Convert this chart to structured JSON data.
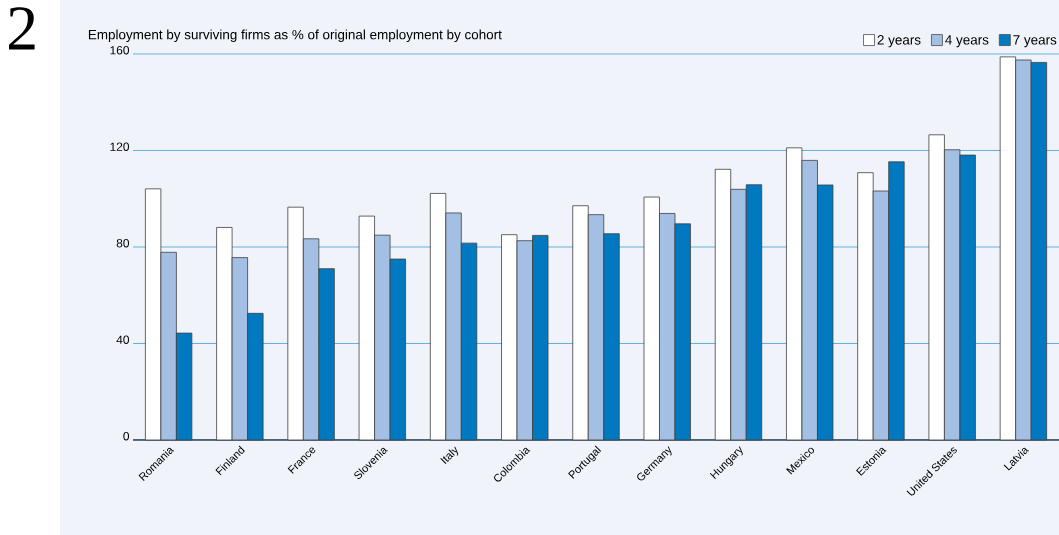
{
  "chart_data": {
    "type": "bar",
    "title": "Employment by surviving firms as % of original employment by cohort",
    "categories": [
      "Romania",
      "Finland",
      "France",
      "Slovenia",
      "Italy",
      "Colombia",
      "Portugal",
      "Germany",
      "Hungary",
      "Mexico",
      "Estonia",
      "United States",
      "Latvia"
    ],
    "series": [
      {
        "name": "2 years",
        "color": "#ffffff",
        "values": [
          104.1,
          88.1,
          96.5,
          92.8,
          102.2,
          85.1,
          97.1,
          100.7,
          112.2,
          121.1,
          110.8,
          126.5,
          158.8
        ]
      },
      {
        "name": "4 years",
        "color": "#a3bfe3",
        "values": [
          77.8,
          75.6,
          83.4,
          84.9,
          94.1,
          82.6,
          93.4,
          93.9,
          103.9,
          115.9,
          103.2,
          120.3,
          157.5
        ]
      },
      {
        "name": "7 years",
        "color": "#0079c1",
        "values": [
          44.3,
          52.5,
          71.0,
          75.0,
          81.6,
          84.8,
          85.5,
          89.6,
          105.8,
          105.7,
          115.3,
          118.1,
          156.5
        ]
      }
    ],
    "ylim": [
      0,
      160
    ],
    "yticks": [
      0,
      40,
      80,
      120,
      160
    ],
    "grid": "y",
    "legend": "top right",
    "annotations": [
      "2"
    ]
  }
}
